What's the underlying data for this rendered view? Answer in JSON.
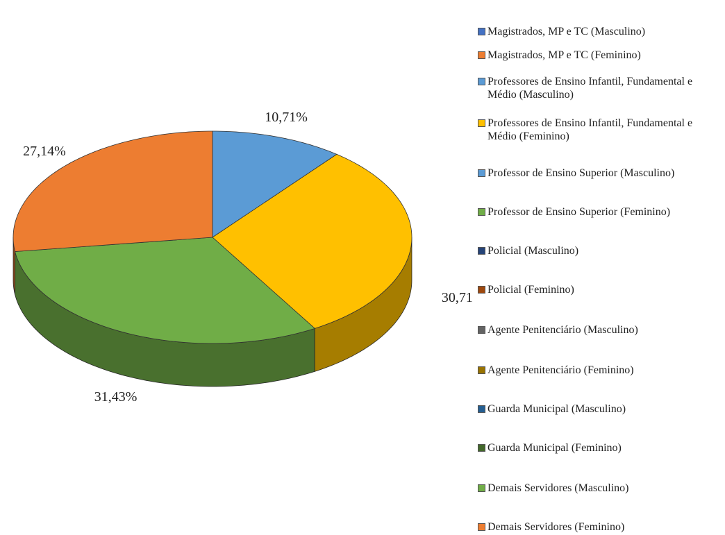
{
  "chart_data": {
    "type": "pie3d",
    "categories": [
      "Magistrados, MP e TC (Masculino)",
      "Magistrados, MP e TC (Feminino)",
      "Professores de Ensino Infantil, Fundamental e Médio (Masculino)",
      "Professores de Ensino Infantil, Fundamental e Médio (Feminino)",
      "Professor de Ensino Superior (Masculino)",
      "Professor de Ensino Superior (Feminino)",
      "Policial (Masculino)",
      "Policial (Feminino)",
      "Agente Penitenciário (Masculino)",
      "Agente Penitenciário (Feminino)",
      "Guarda Municipal (Masculino)",
      "Guarda Municipal (Feminino)",
      "Demais Servidores (Masculino)",
      "Demais Servidores (Feminino)"
    ],
    "values": [
      0,
      0,
      10.71,
      30.71,
      0,
      31.43,
      0,
      0,
      0,
      0,
      0,
      0,
      0,
      27.14
    ],
    "value_labels": [
      null,
      null,
      "10,71%",
      "30,71%",
      null,
      "31,43%",
      null,
      null,
      null,
      null,
      null,
      null,
      null,
      "27,14%"
    ],
    "colors": [
      "#4472c4",
      "#ed7d31",
      "#5b9bd5",
      "#ffc000",
      "#5b9bd5",
      "#70ad47",
      "#264478",
      "#9e480e",
      "#636363",
      "#997300",
      "#255e91",
      "#43682b",
      "#70ad47",
      "#ed7d31"
    ],
    "legend": "right"
  }
}
